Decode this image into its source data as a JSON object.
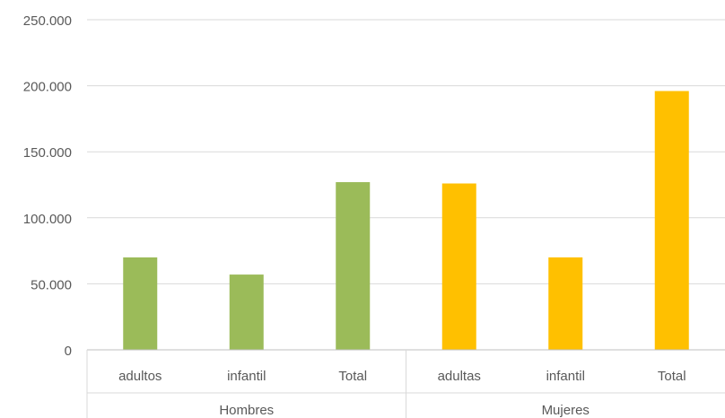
{
  "chart_data": {
    "type": "bar",
    "title": "",
    "xlabel": "",
    "ylabel": "",
    "ylim": [
      0,
      250000
    ],
    "yticks": [
      0,
      50000,
      100000,
      150000,
      200000,
      250000
    ],
    "ytick_labels": [
      "0",
      "50.000",
      "100.000",
      "150.000",
      "200.000",
      "250.000"
    ],
    "grid": true,
    "legend": "none",
    "groups": [
      {
        "name": "Hombres",
        "color": "#9BBB59",
        "categories": [
          "adultos",
          "infantil",
          "Total"
        ],
        "values": [
          70000,
          57000,
          127000
        ]
      },
      {
        "name": "Mujeres",
        "color": "#FFC000",
        "categories": [
          "adultas",
          "infantil",
          "Total"
        ],
        "values": [
          126000,
          70000,
          196000
        ]
      }
    ]
  }
}
